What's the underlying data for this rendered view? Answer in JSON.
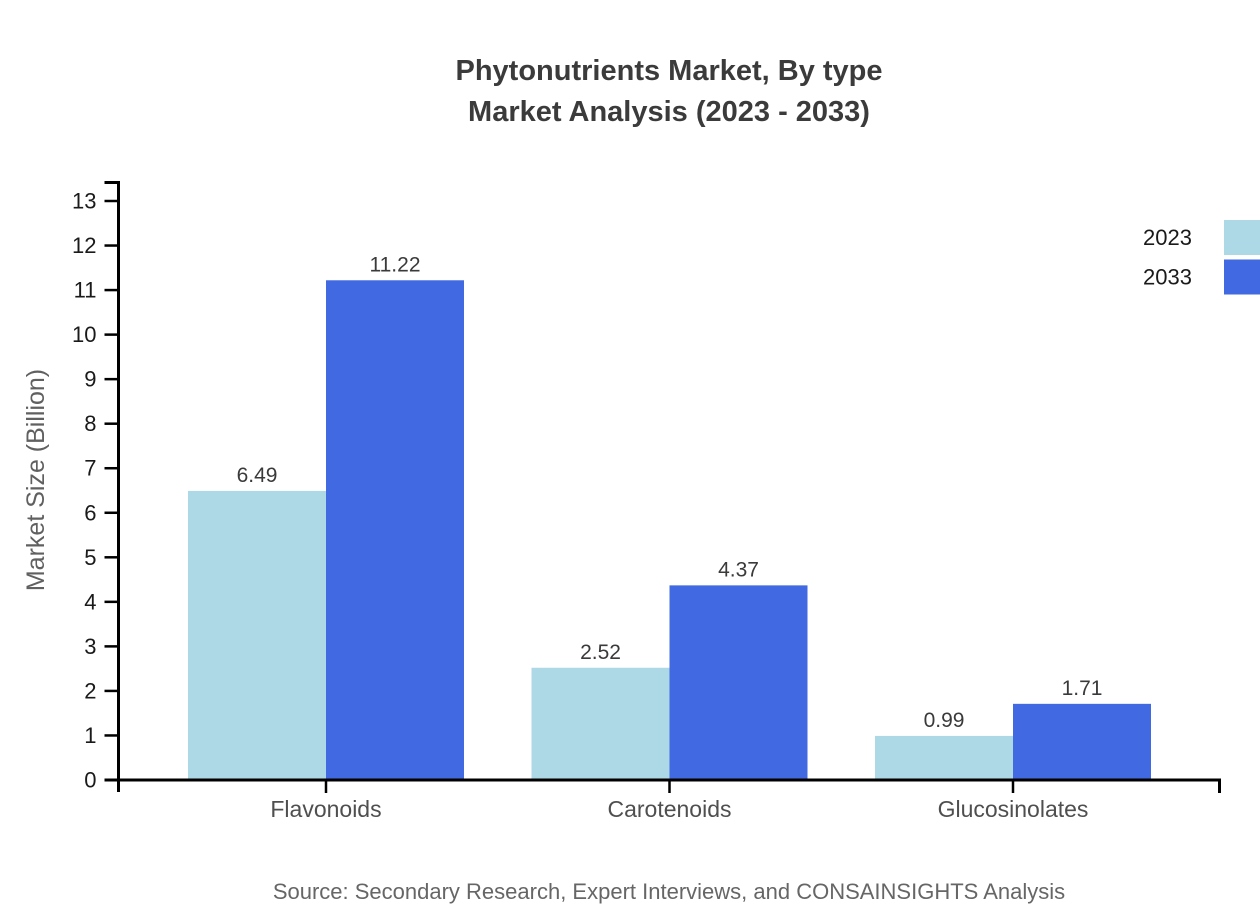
{
  "title": {
    "line1": "Phytonutrients Market, By type",
    "line2": "Market Analysis (2023 - 2033)"
  },
  "chart_data": {
    "type": "bar",
    "categories": [
      "Flavonoids",
      "Carotenoids",
      "Glucosinolates"
    ],
    "series": [
      {
        "name": "2023",
        "color": "#add8e6",
        "values": [
          6.49,
          2.52,
          0.99
        ]
      },
      {
        "name": "2033",
        "color": "#4169e1",
        "values": [
          11.22,
          4.37,
          1.71
        ]
      }
    ],
    "title": "Phytonutrients Market, By type Market Analysis (2023 - 2033)",
    "xlabel": "",
    "ylabel": "Market Size (Billion)",
    "ylim": [
      0,
      13
    ],
    "ytick_step": 1,
    "grid": false,
    "legend_position": "top-right",
    "value_label_decimals": 2
  },
  "source": "Source: Secondary Research, Expert Interviews, and CONSAINSIGHTS Analysis",
  "colors": {
    "title": "#3b3b3b",
    "axis": "#000000",
    "tick_label": "#1a1a1a",
    "category_label": "#4f4f4f",
    "value_label": "#3a3a3a",
    "ylabel": "#606060",
    "legend_label": "#1a1a1a",
    "source": "#666666",
    "background": "#ffffff"
  }
}
